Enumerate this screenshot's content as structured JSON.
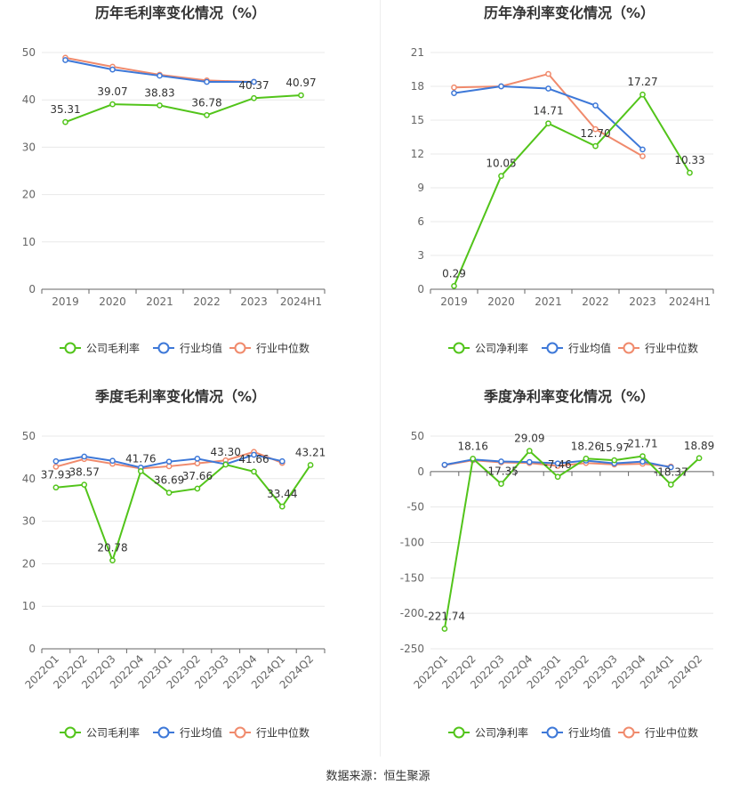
{
  "source_text": "数据来源：恒生聚源",
  "colors": {
    "company": "#52c41a",
    "avg": "#3d78d8",
    "median": "#f08a6c",
    "axis": "#666666",
    "grid": "#e8e8e8"
  },
  "chart_data": [
    {
      "type": "line",
      "title": "历年毛利率变化情况（%）",
      "categories": [
        "2019",
        "2020",
        "2021",
        "2022",
        "2023",
        "2024H1"
      ],
      "ylim": [
        0,
        50
      ],
      "yticks": [
        0,
        10,
        20,
        30,
        40,
        50
      ],
      "grid": true,
      "legend_position": "bottom",
      "series": [
        {
          "name": "公司毛利率",
          "values": [
            35.31,
            39.07,
            38.83,
            36.78,
            40.37,
            40.97
          ],
          "labels": [
            "35.31",
            "39.07",
            "38.83",
            "36.78",
            "40.37",
            "40.97"
          ]
        },
        {
          "name": "行业均值",
          "values": [
            48.4,
            46.4,
            45.1,
            43.8,
            43.8,
            null
          ]
        },
        {
          "name": "行业中位数",
          "values": [
            48.9,
            47.0,
            45.3,
            44.1,
            43.8,
            null
          ]
        }
      ]
    },
    {
      "type": "line",
      "title": "历年净利率变化情况（%）",
      "categories": [
        "2019",
        "2020",
        "2021",
        "2022",
        "2023",
        "2024H1"
      ],
      "ylim": [
        0,
        21
      ],
      "yticks": [
        0,
        3,
        6,
        9,
        12,
        15,
        18,
        21
      ],
      "grid": true,
      "legend_position": "bottom",
      "series": [
        {
          "name": "公司净利率",
          "values": [
            0.29,
            10.05,
            14.71,
            12.7,
            17.27,
            10.33
          ],
          "labels": [
            "0.29",
            "10.05",
            "14.71",
            "12.70",
            "17.27",
            "10.33"
          ]
        },
        {
          "name": "行业均值",
          "values": [
            17.4,
            18.0,
            17.8,
            16.3,
            12.4,
            null
          ]
        },
        {
          "name": "行业中位数",
          "values": [
            17.9,
            18.0,
            19.1,
            14.2,
            11.8,
            null
          ]
        }
      ]
    },
    {
      "type": "line",
      "title": "季度毛利率变化情况（%）",
      "categories": [
        "2022Q1",
        "2022Q2",
        "2022Q3",
        "2022Q4",
        "2023Q1",
        "2023Q2",
        "2023Q3",
        "2023Q4",
        "2024Q1",
        "2024Q2"
      ],
      "ylim": [
        0,
        50
      ],
      "yticks": [
        0,
        10,
        20,
        30,
        40,
        50
      ],
      "grid": true,
      "legend_position": "bottom",
      "series": [
        {
          "name": "公司毛利率",
          "values": [
            37.93,
            38.57,
            20.78,
            41.76,
            36.69,
            37.66,
            43.3,
            41.66,
            33.44,
            43.21
          ],
          "labels": [
            "37.93",
            "38.57",
            "20.78",
            "41.76",
            "36.69",
            "37.66",
            "43.30",
            "41.66",
            "33.44",
            "43.21"
          ]
        },
        {
          "name": "行业均值",
          "values": [
            44.1,
            45.2,
            44.2,
            42.6,
            44.0,
            44.7,
            43.4,
            45.6,
            44.1,
            null
          ]
        },
        {
          "name": "行业中位数",
          "values": [
            42.8,
            44.6,
            43.5,
            42.4,
            42.9,
            43.6,
            44.3,
            46.3,
            43.7,
            null
          ]
        }
      ]
    },
    {
      "type": "line",
      "title": "季度净利率变化情况（%）",
      "categories": [
        "2022Q1",
        "2022Q2",
        "2022Q3",
        "2022Q4",
        "2023Q1",
        "2023Q2",
        "2023Q3",
        "2023Q4",
        "2024Q1",
        "2024Q2"
      ],
      "ylim": [
        -250,
        50
      ],
      "yticks": [
        -250,
        -200,
        -150,
        -100,
        -50,
        0,
        50
      ],
      "grid": true,
      "legend_position": "bottom",
      "series": [
        {
          "name": "公司净利率",
          "values": [
            -221.74,
            18.16,
            -17.35,
            29.09,
            -7.46,
            18.26,
            15.97,
            21.71,
            -18.37,
            18.89
          ],
          "labels": [
            "-221.74",
            "18.16",
            "-17.35",
            "29.09",
            "-7.46",
            "18.26",
            "15.97",
            "21.71",
            "-18.37",
            "18.89"
          ]
        },
        {
          "name": "行业均值",
          "values": [
            9.5,
            17.0,
            14.2,
            13.5,
            11.5,
            15.5,
            11.5,
            14.0,
            6.0,
            null
          ]
        },
        {
          "name": "行业中位数",
          "values": [
            9.0,
            16.0,
            13.0,
            12.0,
            8.0,
            12.0,
            10.0,
            11.0,
            7.0,
            null
          ]
        }
      ]
    }
  ]
}
